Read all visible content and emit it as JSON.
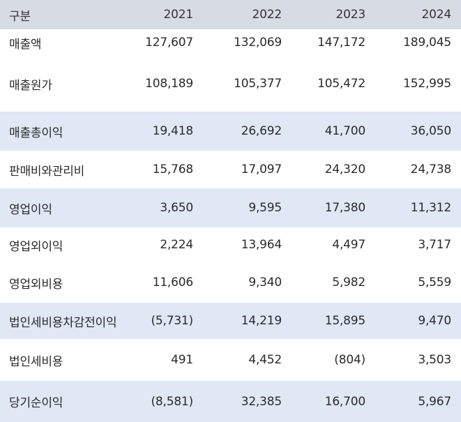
{
  "table": {
    "header": [
      "구분",
      "2021",
      "2022",
      "2023",
      "2024"
    ],
    "rows": [
      {
        "label": "매출액",
        "values": [
          "127,607",
          "132,069",
          "147,172",
          "189,045"
        ],
        "highlight": false
      },
      {
        "label": "매출원가",
        "values": [
          "108,189",
          "105,377",
          "105,472",
          "152,995"
        ],
        "highlight": false
      },
      {
        "label": "매출총이익",
        "values": [
          "19,418",
          "26,692",
          "41,700",
          "36,050"
        ],
        "highlight": true
      },
      {
        "label": "판매비와관리비",
        "values": [
          "15,768",
          "17,097",
          "24,320",
          "24,738"
        ],
        "highlight": false
      },
      {
        "label": "영업이익",
        "values": [
          "3,650",
          "9,595",
          "17,380",
          "11,312"
        ],
        "highlight": true
      },
      {
        "label": "영업외이익",
        "values": [
          "2,224",
          "13,964",
          "4,497",
          "3,717"
        ],
        "highlight": false
      },
      {
        "label": "영업외비용",
        "values": [
          "11,606",
          "9,340",
          "5,982",
          "5,559"
        ],
        "highlight": false
      },
      {
        "label": "법인세비용차감전이익",
        "values": [
          "(5,731)",
          "14,219",
          "15,895",
          "9,470"
        ],
        "highlight": true
      },
      {
        "label": "법인세비용",
        "values": [
          "491",
          "4,452",
          "(804)",
          "3,503"
        ],
        "highlight": false
      },
      {
        "label": "당기순이익",
        "values": [
          "(8,581)",
          "32,385",
          "16,700",
          "5,967"
        ],
        "highlight": true
      }
    ]
  },
  "colors": {
    "header_bg": "#d7dce4",
    "highlight_bg": "#dfe8f4",
    "text": "#2a2a2a"
  }
}
